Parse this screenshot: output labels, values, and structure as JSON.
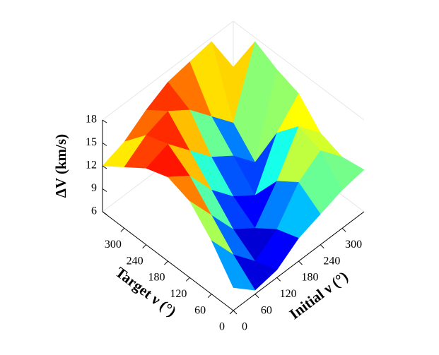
{
  "chart_data": {
    "type": "surface3d",
    "xlabel": "Initial ν (°)",
    "ylabel": "Target ν (°)",
    "zlabel": "ΔV (km/s)",
    "x": [
      0,
      60,
      120,
      180,
      240,
      300,
      360
    ],
    "y": [
      0,
      60,
      120,
      180,
      240,
      300,
      360
    ],
    "z": [
      [
        9,
        6.5,
        7,
        9,
        10,
        11,
        11.5
      ],
      [
        13,
        9,
        6,
        8,
        12,
        14,
        11
      ],
      [
        16,
        12,
        8,
        6,
        10,
        15,
        12
      ],
      [
        17,
        15,
        11,
        8,
        6,
        12,
        15
      ],
      [
        16,
        17,
        14,
        11,
        9,
        6,
        16
      ],
      [
        14,
        16,
        17,
        15,
        12,
        9,
        17.5
      ],
      [
        12,
        13,
        15,
        16.5,
        17,
        17.5,
        12
      ]
    ],
    "xlim": [
      0,
      360
    ],
    "ylim": [
      0,
      360
    ],
    "zlim": [
      6,
      18
    ],
    "xticks": [
      0,
      60,
      120,
      180,
      240,
      300
    ],
    "yticks": [
      0,
      60,
      120,
      180,
      240,
      300
    ],
    "zticks": [
      6,
      9,
      12,
      15,
      18
    ],
    "colormap": "jet"
  }
}
